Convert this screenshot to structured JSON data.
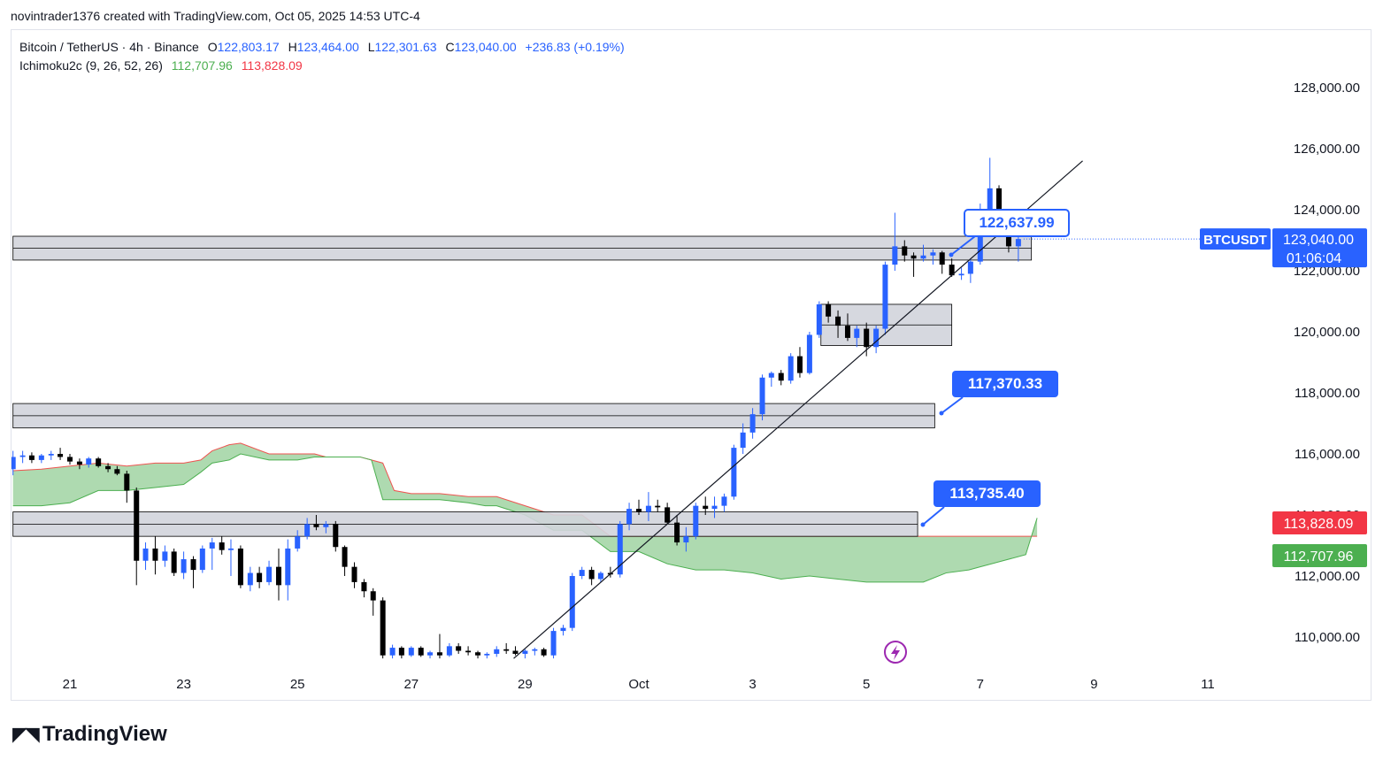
{
  "header": {
    "attribution": "novintrader1376 created with TradingView.com, Oct 05, 2025 14:53 UTC-4"
  },
  "legend": {
    "symbol": "Bitcoin / TetherUS · 4h · Binance",
    "open_label": "O",
    "open": "122,803.17",
    "high_label": "H",
    "high": "123,464.00",
    "low_label": "L",
    "low": "122,301.63",
    "close_label": "C",
    "close": "123,040.00",
    "change": "+236.83 (+0.19%)",
    "indicator": "Ichimoku2c (9, 26, 52, 26)",
    "ind_value_1": "112,707.96",
    "ind_value_2": "113,828.09"
  },
  "footer": {
    "logo_text": "TradingView"
  },
  "colors": {
    "up": "#2962ff",
    "down": "#000000",
    "cloud": "#a5d6a7",
    "cloud_upper": "#ef5350",
    "accent_blue": "#2962ff",
    "accent_red": "#f23645",
    "accent_green": "#4caf50",
    "zone_fill": "#d1d4dc"
  },
  "chart_data": {
    "type": "candlestick",
    "symbol": "BTCUSDT",
    "timeframe": "4h",
    "ylim": [
      108800,
      129800
    ],
    "y_ticks": [
      110000,
      112000,
      114000,
      116000,
      118000,
      120000,
      122000,
      124000,
      126000,
      128000
    ],
    "y_tick_labels": [
      "110,000.00",
      "112,000.00",
      "114,000.00",
      "116,000.00",
      "118,000.00",
      "120,000.00",
      "122,000.00",
      "124,000.00",
      "126,000.00",
      "128,000.00"
    ],
    "x_ticks": [
      {
        "label": "21",
        "day": 21
      },
      {
        "label": "23",
        "day": 23
      },
      {
        "label": "25",
        "day": 25
      },
      {
        "label": "27",
        "day": 27
      },
      {
        "label": "29",
        "day": 29
      },
      {
        "label": "Oct",
        "day": 31
      },
      {
        "label": "3",
        "day": 33
      },
      {
        "label": "5",
        "day": 35
      },
      {
        "label": "7",
        "day": 37
      },
      {
        "label": "9",
        "day": 39
      },
      {
        "label": "11",
        "day": 41
      }
    ],
    "candles": [
      {
        "day": 20.0,
        "o": 115500,
        "h": 116100,
        "l": 115300,
        "c": 115900
      },
      {
        "day": 20.17,
        "o": 115900,
        "h": 116100,
        "l": 115700,
        "c": 115950
      },
      {
        "day": 20.33,
        "o": 115950,
        "h": 116050,
        "l": 115700,
        "c": 115800
      },
      {
        "day": 20.5,
        "o": 115800,
        "h": 116000,
        "l": 115700,
        "c": 115950
      },
      {
        "day": 20.67,
        "o": 115950,
        "h": 116100,
        "l": 115800,
        "c": 116000
      },
      {
        "day": 20.83,
        "o": 116000,
        "h": 116200,
        "l": 115800,
        "c": 115900
      },
      {
        "day": 21.0,
        "o": 115900,
        "h": 116000,
        "l": 115650,
        "c": 115750
      },
      {
        "day": 21.17,
        "o": 115750,
        "h": 115850,
        "l": 115500,
        "c": 115650
      },
      {
        "day": 21.33,
        "o": 115650,
        "h": 115900,
        "l": 115550,
        "c": 115850
      },
      {
        "day": 21.5,
        "o": 115850,
        "h": 115900,
        "l": 115550,
        "c": 115600
      },
      {
        "day": 21.67,
        "o": 115600,
        "h": 115700,
        "l": 115400,
        "c": 115500
      },
      {
        "day": 21.83,
        "o": 115500,
        "h": 115600,
        "l": 115300,
        "c": 115350
      },
      {
        "day": 22.0,
        "o": 115350,
        "h": 115450,
        "l": 114400,
        "c": 114800
      },
      {
        "day": 22.17,
        "o": 114800,
        "h": 114900,
        "l": 111700,
        "c": 112500
      },
      {
        "day": 22.33,
        "o": 112500,
        "h": 113100,
        "l": 112200,
        "c": 112900
      },
      {
        "day": 22.5,
        "o": 112900,
        "h": 113300,
        "l": 112050,
        "c": 112500
      },
      {
        "day": 22.67,
        "o": 112500,
        "h": 113000,
        "l": 112300,
        "c": 112800
      },
      {
        "day": 22.83,
        "o": 112800,
        "h": 112900,
        "l": 112000,
        "c": 112100
      },
      {
        "day": 23.0,
        "o": 112100,
        "h": 112800,
        "l": 111900,
        "c": 112550
      },
      {
        "day": 23.17,
        "o": 112550,
        "h": 112650,
        "l": 111600,
        "c": 112200
      },
      {
        "day": 23.33,
        "o": 112200,
        "h": 113000,
        "l": 112100,
        "c": 112900
      },
      {
        "day": 23.5,
        "o": 112900,
        "h": 113250,
        "l": 112200,
        "c": 113100
      },
      {
        "day": 23.67,
        "o": 113100,
        "h": 113300,
        "l": 112700,
        "c": 112850
      },
      {
        "day": 23.83,
        "o": 112850,
        "h": 113200,
        "l": 112000,
        "c": 112900
      },
      {
        "day": 24.0,
        "o": 112900,
        "h": 113000,
        "l": 111600,
        "c": 111700
      },
      {
        "day": 24.17,
        "o": 111700,
        "h": 112300,
        "l": 111500,
        "c": 112100
      },
      {
        "day": 24.33,
        "o": 112100,
        "h": 112300,
        "l": 111600,
        "c": 111800
      },
      {
        "day": 24.5,
        "o": 111800,
        "h": 112500,
        "l": 111700,
        "c": 112300
      },
      {
        "day": 24.67,
        "o": 112300,
        "h": 112900,
        "l": 111200,
        "c": 111700
      },
      {
        "day": 24.83,
        "o": 111700,
        "h": 113200,
        "l": 111200,
        "c": 112900
      },
      {
        "day": 25.0,
        "o": 112900,
        "h": 113500,
        "l": 112800,
        "c": 113300
      },
      {
        "day": 25.17,
        "o": 113300,
        "h": 113900,
        "l": 113200,
        "c": 113700
      },
      {
        "day": 25.33,
        "o": 113700,
        "h": 114000,
        "l": 113500,
        "c": 113600
      },
      {
        "day": 25.5,
        "o": 113600,
        "h": 113800,
        "l": 113400,
        "c": 113700
      },
      {
        "day": 25.67,
        "o": 113700,
        "h": 113800,
        "l": 112800,
        "c": 112950
      },
      {
        "day": 25.83,
        "o": 112950,
        "h": 113000,
        "l": 112000,
        "c": 112300
      },
      {
        "day": 26.0,
        "o": 112300,
        "h": 112450,
        "l": 111600,
        "c": 111800
      },
      {
        "day": 26.17,
        "o": 111800,
        "h": 111900,
        "l": 111300,
        "c": 111500
      },
      {
        "day": 26.33,
        "o": 111500,
        "h": 111600,
        "l": 110700,
        "c": 111200
      },
      {
        "day": 26.5,
        "o": 111200,
        "h": 111300,
        "l": 109300,
        "c": 109400
      },
      {
        "day": 26.67,
        "o": 109400,
        "h": 109750,
        "l": 109300,
        "c": 109650
      },
      {
        "day": 26.83,
        "o": 109650,
        "h": 109700,
        "l": 109300,
        "c": 109400
      },
      {
        "day": 27.0,
        "o": 109400,
        "h": 109700,
        "l": 109350,
        "c": 109650
      },
      {
        "day": 27.17,
        "o": 109650,
        "h": 109700,
        "l": 109350,
        "c": 109400
      },
      {
        "day": 27.33,
        "o": 109400,
        "h": 109550,
        "l": 109300,
        "c": 109500
      },
      {
        "day": 27.5,
        "o": 109500,
        "h": 110100,
        "l": 109300,
        "c": 109400
      },
      {
        "day": 27.67,
        "o": 109400,
        "h": 109800,
        "l": 109350,
        "c": 109700
      },
      {
        "day": 27.83,
        "o": 109700,
        "h": 109800,
        "l": 109450,
        "c": 109550
      },
      {
        "day": 28.0,
        "o": 109550,
        "h": 109700,
        "l": 109400,
        "c": 109500
      },
      {
        "day": 28.17,
        "o": 109500,
        "h": 109550,
        "l": 109300,
        "c": 109400
      },
      {
        "day": 28.33,
        "o": 109400,
        "h": 109500,
        "l": 109300,
        "c": 109450
      },
      {
        "day": 28.5,
        "o": 109450,
        "h": 109700,
        "l": 109350,
        "c": 109600
      },
      {
        "day": 28.67,
        "o": 109600,
        "h": 109800,
        "l": 109450,
        "c": 109550
      },
      {
        "day": 28.83,
        "o": 109550,
        "h": 109700,
        "l": 109400,
        "c": 109450
      },
      {
        "day": 29.0,
        "o": 109450,
        "h": 109600,
        "l": 109300,
        "c": 109550
      },
      {
        "day": 29.17,
        "o": 109550,
        "h": 109650,
        "l": 109400,
        "c": 109600
      },
      {
        "day": 29.33,
        "o": 109600,
        "h": 109650,
        "l": 109350,
        "c": 109400
      },
      {
        "day": 29.5,
        "o": 109400,
        "h": 110300,
        "l": 109300,
        "c": 110200
      },
      {
        "day": 29.67,
        "o": 110200,
        "h": 110400,
        "l": 110050,
        "c": 110300
      },
      {
        "day": 29.83,
        "o": 110300,
        "h": 112100,
        "l": 110200,
        "c": 112000
      },
      {
        "day": 30.0,
        "o": 112000,
        "h": 112300,
        "l": 111900,
        "c": 112200
      },
      {
        "day": 30.17,
        "o": 112200,
        "h": 112300,
        "l": 111700,
        "c": 111900
      },
      {
        "day": 30.33,
        "o": 111900,
        "h": 112150,
        "l": 111800,
        "c": 112100
      },
      {
        "day": 30.5,
        "o": 112100,
        "h": 112300,
        "l": 111950,
        "c": 112050
      },
      {
        "day": 30.67,
        "o": 112050,
        "h": 113800,
        "l": 111950,
        "c": 113700
      },
      {
        "day": 30.83,
        "o": 113700,
        "h": 114400,
        "l": 113500,
        "c": 114200
      },
      {
        "day": 31.0,
        "o": 114200,
        "h": 114500,
        "l": 114000,
        "c": 114100
      },
      {
        "day": 31.17,
        "o": 114100,
        "h": 114750,
        "l": 113800,
        "c": 114300
      },
      {
        "day": 31.33,
        "o": 114300,
        "h": 114500,
        "l": 114100,
        "c": 114250
      },
      {
        "day": 31.5,
        "o": 114250,
        "h": 114400,
        "l": 113700,
        "c": 113750
      },
      {
        "day": 31.67,
        "o": 113750,
        "h": 114000,
        "l": 113000,
        "c": 113100
      },
      {
        "day": 31.83,
        "o": 113100,
        "h": 113600,
        "l": 112800,
        "c": 113300
      },
      {
        "day": 32.0,
        "o": 113300,
        "h": 114400,
        "l": 113200,
        "c": 114300
      },
      {
        "day": 32.17,
        "o": 114300,
        "h": 114600,
        "l": 114000,
        "c": 114200
      },
      {
        "day": 32.33,
        "o": 114200,
        "h": 114600,
        "l": 113900,
        "c": 114300
      },
      {
        "day": 32.5,
        "o": 114300,
        "h": 114700,
        "l": 114100,
        "c": 114600
      },
      {
        "day": 32.67,
        "o": 114600,
        "h": 116300,
        "l": 114500,
        "c": 116200
      },
      {
        "day": 32.83,
        "o": 116200,
        "h": 117000,
        "l": 116000,
        "c": 116700
      },
      {
        "day": 33.0,
        "o": 116700,
        "h": 117500,
        "l": 116500,
        "c": 117300
      },
      {
        "day": 33.17,
        "o": 117300,
        "h": 118600,
        "l": 117100,
        "c": 118500
      },
      {
        "day": 33.33,
        "o": 118500,
        "h": 118700,
        "l": 118200,
        "c": 118650
      },
      {
        "day": 33.5,
        "o": 118650,
        "h": 118750,
        "l": 118250,
        "c": 118400
      },
      {
        "day": 33.67,
        "o": 118400,
        "h": 119300,
        "l": 118300,
        "c": 119200
      },
      {
        "day": 33.83,
        "o": 119200,
        "h": 119500,
        "l": 118500,
        "c": 118650
      },
      {
        "day": 34.0,
        "o": 118650,
        "h": 120000,
        "l": 118600,
        "c": 119900
      },
      {
        "day": 34.17,
        "o": 119900,
        "h": 121000,
        "l": 119800,
        "c": 120900
      },
      {
        "day": 34.33,
        "o": 120900,
        "h": 121000,
        "l": 120300,
        "c": 120500
      },
      {
        "day": 34.5,
        "o": 120500,
        "h": 120700,
        "l": 119800,
        "c": 120200
      },
      {
        "day": 34.67,
        "o": 120200,
        "h": 120600,
        "l": 119700,
        "c": 119800
      },
      {
        "day": 34.83,
        "o": 119800,
        "h": 120200,
        "l": 119500,
        "c": 120100
      },
      {
        "day": 35.0,
        "o": 120100,
        "h": 120300,
        "l": 119200,
        "c": 119500
      },
      {
        "day": 35.17,
        "o": 119500,
        "h": 120200,
        "l": 119300,
        "c": 120100
      },
      {
        "day": 35.33,
        "o": 120100,
        "h": 122300,
        "l": 119900,
        "c": 122200
      },
      {
        "day": 35.5,
        "o": 122200,
        "h": 123900,
        "l": 122000,
        "c": 122800
      },
      {
        "day": 35.67,
        "o": 122800,
        "h": 123000,
        "l": 122300,
        "c": 122500
      },
      {
        "day": 35.83,
        "o": 122500,
        "h": 122600,
        "l": 121800,
        "c": 122400
      },
      {
        "day": 36.0,
        "o": 122400,
        "h": 122850,
        "l": 122300,
        "c": 122500
      },
      {
        "day": 36.17,
        "o": 122500,
        "h": 122700,
        "l": 122200,
        "c": 122600
      },
      {
        "day": 36.33,
        "o": 122600,
        "h": 122650,
        "l": 121900,
        "c": 122200
      },
      {
        "day": 36.5,
        "o": 122200,
        "h": 122400,
        "l": 121800,
        "c": 121850
      },
      {
        "day": 36.67,
        "o": 121850,
        "h": 122100,
        "l": 121700,
        "c": 121900
      },
      {
        "day": 36.83,
        "o": 121900,
        "h": 122400,
        "l": 121600,
        "c": 122300
      },
      {
        "day": 37.0,
        "o": 122300,
        "h": 124200,
        "l": 122200,
        "c": 123800
      },
      {
        "day": 37.17,
        "o": 123800,
        "h": 125700,
        "l": 123600,
        "c": 124700
      },
      {
        "day": 37.33,
        "o": 124700,
        "h": 124800,
        "l": 123100,
        "c": 123500
      },
      {
        "day": 37.5,
        "o": 123500,
        "h": 123600,
        "l": 122600,
        "c": 122800
      },
      {
        "day": 37.67,
        "o": 122800,
        "h": 123500,
        "l": 122300,
        "c": 123040
      }
    ],
    "ichimoku_cloud": {
      "day": [
        20.0,
        20.5,
        21.0,
        21.5,
        22.0,
        22.5,
        23.0,
        23.3,
        23.5,
        23.8,
        24.0,
        24.5,
        25.0,
        25.3,
        25.5,
        25.9,
        26.1,
        26.3,
        26.5,
        26.7,
        27.0,
        27.5,
        28.0,
        28.3,
        28.5,
        29.0,
        29.5,
        30.0,
        30.5,
        31.0,
        31.5,
        32.0,
        32.5,
        33.0,
        33.5,
        34.0,
        34.5,
        35.0,
        35.5,
        36.0,
        36.4,
        36.8,
        37.0,
        37.4,
        37.8,
        38.0
      ],
      "span_a": [
        115450,
        115500,
        115600,
        115700,
        115600,
        115700,
        115700,
        115800,
        116100,
        116300,
        116350,
        116000,
        116000,
        116000,
        115900,
        115900,
        115900,
        115800,
        115700,
        114800,
        114700,
        114700,
        114600,
        114600,
        114600,
        114300,
        114000,
        114000,
        113300,
        113300,
        113300,
        113300,
        113300,
        113300,
        113300,
        113300,
        113300,
        113300,
        113300,
        113300,
        113300,
        113300,
        113300,
        113300,
        113300,
        113300
      ],
      "span_b": [
        114300,
        114300,
        114400,
        114800,
        114800,
        114900,
        115000,
        115400,
        115700,
        115800,
        116000,
        115800,
        115800,
        115900,
        115900,
        115900,
        115900,
        115800,
        114500,
        114500,
        114500,
        114500,
        114400,
        114300,
        114300,
        114000,
        113500,
        113500,
        112800,
        112800,
        112400,
        112200,
        112200,
        112100,
        111900,
        112000,
        111900,
        111800,
        111800,
        111800,
        112100,
        112200,
        112300,
        112500,
        112700,
        113900
      ],
      "upper_color": "#ef5350",
      "lower_color": "#4caf50"
    },
    "zones": [
      {
        "from_day": 20.0,
        "to_day": 37.9,
        "low": 122350,
        "high": 123130
      },
      {
        "from_day": 34.2,
        "to_day": 36.5,
        "low": 119550,
        "high": 120900
      },
      {
        "from_day": 20.0,
        "to_day": 36.2,
        "low": 116850,
        "high": 117650
      },
      {
        "from_day": 20.0,
        "to_day": 35.9,
        "low": 113300,
        "high": 114100
      }
    ],
    "trendline": {
      "x1": 28.8,
      "y1": 109300,
      "x2": 38.8,
      "y2": 125600
    },
    "callouts": [
      {
        "label": "122,637.99",
        "value": 122637.99,
        "style": "outline"
      },
      {
        "label": "117,370.33",
        "value": 117370.33,
        "style": "filled"
      },
      {
        "label": "113,735.40",
        "value": 113735.4,
        "style": "filled"
      }
    ],
    "price_labels": {
      "ticker": "BTCUSDT",
      "last_price": "123,040.00",
      "countdown": "01:06:04",
      "ind_red": "113,828.09",
      "ind_green": "112,707.96"
    }
  }
}
